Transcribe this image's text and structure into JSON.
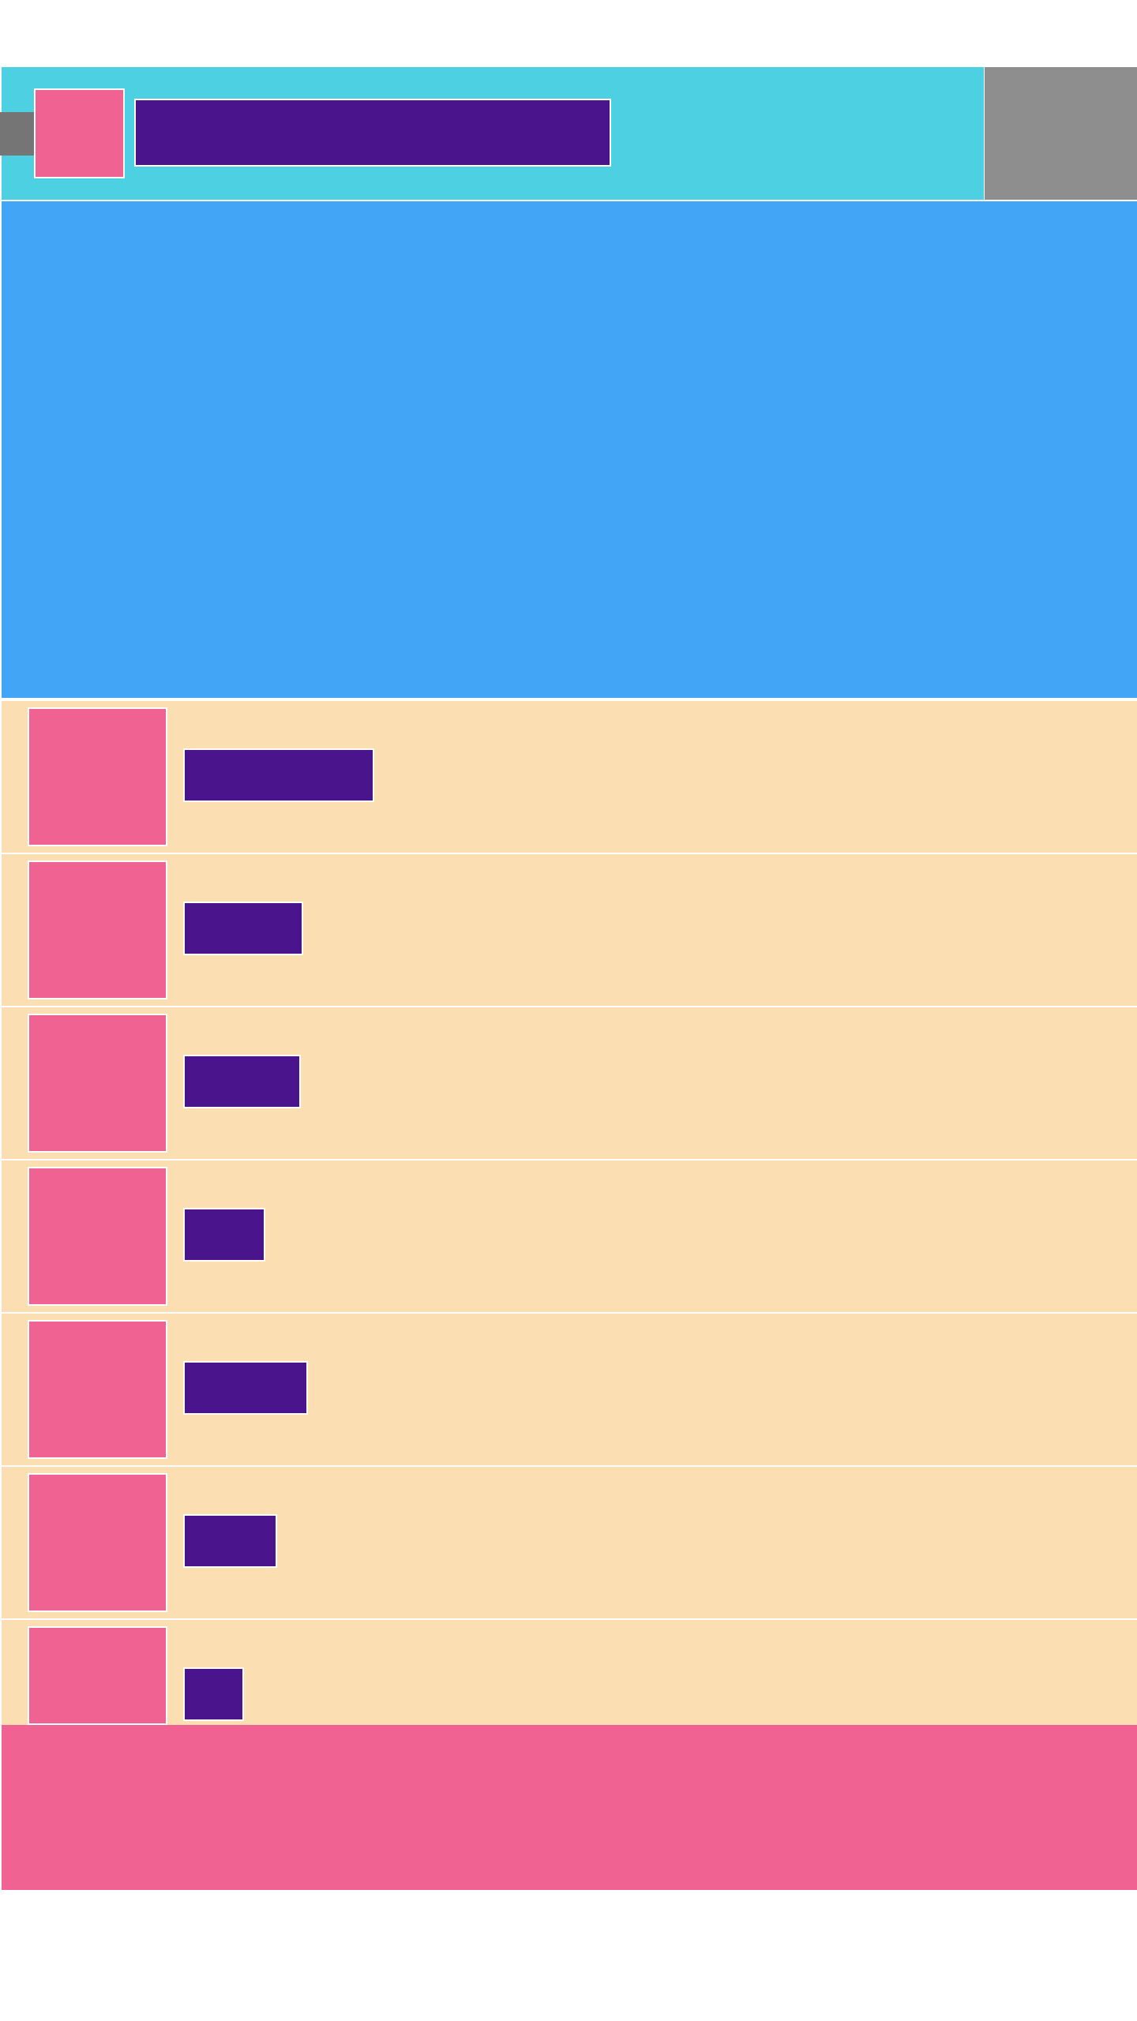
{
  "colors": {
    "app_bar": "#4dd0e1",
    "overflow_panel": "#8e8e8e",
    "back_button": "#757575",
    "logo": "#f06292",
    "title_block": "#4a148c",
    "hero": "#42a5f5",
    "list_item": "#fcdeb3",
    "thumbnail": "#f06292",
    "label_block": "#4a148c",
    "bottom_bar": "#f06292",
    "page_background": "#ffffff"
  },
  "app_bar": {
    "back_icon": "arrow-back-icon",
    "logo_icon": "app-logo-icon",
    "title": ""
  },
  "list": {
    "items": [
      {
        "label": "",
        "thumbnail_icon": "image-icon"
      },
      {
        "label": "",
        "thumbnail_icon": "image-icon"
      },
      {
        "label": "",
        "thumbnail_icon": "image-icon"
      },
      {
        "label": "",
        "thumbnail_icon": "image-icon"
      },
      {
        "label": "",
        "thumbnail_icon": "image-icon"
      },
      {
        "label": "",
        "thumbnail_icon": "image-icon"
      },
      {
        "label": "",
        "thumbnail_icon": "image-icon"
      }
    ]
  }
}
